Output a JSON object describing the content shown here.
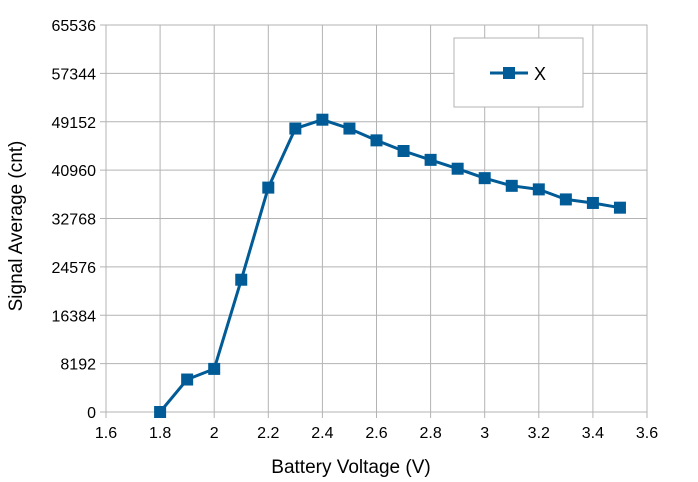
{
  "chart_data": {
    "type": "line",
    "title": "",
    "xlabel": "Battery Voltage (V)",
    "ylabel": "Signal Average (cnt)",
    "xlim": [
      1.6,
      3.6
    ],
    "ylim": [
      0,
      65536
    ],
    "x_ticks": [
      "1.6",
      "1.8",
      "2",
      "2.2",
      "2.4",
      "2.6",
      "2.8",
      "3",
      "3.2",
      "3.4",
      "3.6"
    ],
    "y_ticks": [
      "0",
      "8192",
      "16384",
      "24576",
      "32768",
      "40960",
      "49152",
      "57344",
      "65536"
    ],
    "grid": true,
    "legend_position": "top-right",
    "series": [
      {
        "name": "X",
        "color": "#005b96",
        "marker": "square",
        "x": [
          1.8,
          1.9,
          2.0,
          2.1,
          2.2,
          2.3,
          2.4,
          2.5,
          2.6,
          2.7,
          2.8,
          2.9,
          3.0,
          3.1,
          3.2,
          3.3,
          3.4,
          3.5
        ],
        "y": [
          0,
          5500,
          7300,
          22400,
          38000,
          48000,
          49500,
          48000,
          46000,
          44200,
          42700,
          41200,
          39600,
          38300,
          37700,
          36000,
          35400,
          34600
        ]
      }
    ]
  }
}
